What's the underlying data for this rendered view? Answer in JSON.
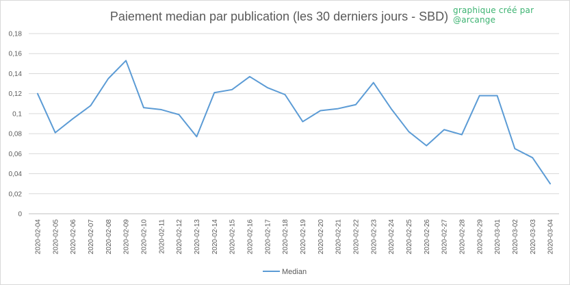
{
  "credit": "graphique créé par @arcange",
  "chart_data": {
    "type": "line",
    "title": "Paiement median par publication (les 30 derniers jours - SBD)",
    "xlabel": "",
    "ylabel": "",
    "ylim": [
      0,
      0.18
    ],
    "yticks": [
      "0",
      "0,02",
      "0,04",
      "0,06",
      "0,08",
      "0,1",
      "0,12",
      "0,14",
      "0,16",
      "0,18"
    ],
    "grid": true,
    "legend_position": "bottom",
    "categories": [
      "2020-02-04",
      "2020-02-05",
      "2020-02-06",
      "2020-02-07",
      "2020-02-08",
      "2020-02-09",
      "2020-02-10",
      "2020-02-11",
      "2020-02-12",
      "2020-02-13",
      "2020-02-14",
      "2020-02-15",
      "2020-02-16",
      "2020-02-17",
      "2020-02-18",
      "2020-02-19",
      "2020-02-20",
      "2020-02-21",
      "2020-02-22",
      "2020-02-23",
      "2020-02-24",
      "2020-02-25",
      "2020-02-26",
      "2020-02-27",
      "2020-02-28",
      "2020-02-29",
      "2020-03-01",
      "2020-03-02",
      "2020-03-03",
      "2020-03-04"
    ],
    "series": [
      {
        "name": "Median",
        "color": "#5b9bd5",
        "values": [
          0.12,
          0.081,
          0.095,
          0.108,
          0.135,
          0.153,
          0.106,
          0.104,
          0.099,
          0.077,
          0.121,
          0.124,
          0.137,
          0.126,
          0.119,
          0.092,
          0.103,
          0.105,
          0.109,
          0.131,
          0.105,
          0.082,
          0.068,
          0.084,
          0.079,
          0.118,
          0.118,
          0.065,
          0.056,
          0.03
        ]
      }
    ]
  }
}
